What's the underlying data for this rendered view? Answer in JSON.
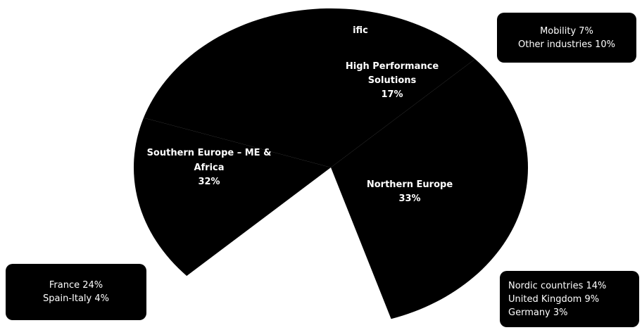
{
  "chart_data": {
    "type": "pie",
    "slices": [
      {
        "label_lines": [
          "High Performance",
          "Solutions"
        ],
        "value_label": "17%",
        "value": 17,
        "color": "#000000"
      },
      {
        "label_lines": [
          "Northern Europe"
        ],
        "value_label": "33%",
        "value": 33,
        "color": "#000000"
      },
      {
        "label_lines": [
          "Southern Europe – ME &",
          "Africa"
        ],
        "value_label": "32%",
        "value": 32,
        "color": "#000000"
      },
      {
        "label_lines": [
          "ific"
        ],
        "value_label": "",
        "value": 18,
        "color": "#ffffff"
      }
    ]
  },
  "callouts": {
    "high_performance": [
      "Mobility 7%",
      "Other industries 10%"
    ],
    "southern_europe": [
      "France 24%",
      "Spain-Italy 4%"
    ],
    "northern_europe": [
      "Nordic countries 14%",
      "United Kingdom 9%",
      "Germany 3%"
    ]
  },
  "colors": {
    "slice": "#000000",
    "label_text": "#ffffff",
    "background": "#ffffff"
  }
}
